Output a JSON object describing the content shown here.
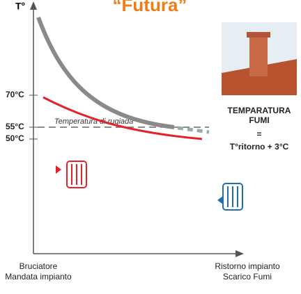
{
  "header": {
    "axis_symbol": "T°",
    "title": "“Futura”"
  },
  "axis": {
    "ticks": [
      "70°C",
      "55°C",
      "50°C"
    ]
  },
  "curve_label": "Temperatura di rugiada",
  "side": {
    "title_lines": [
      "TEMPARATURA",
      "FUMI"
    ],
    "equals": "=",
    "formula": "T°ritorno + 3°C"
  },
  "bottom": {
    "left": [
      "Bruciatore",
      "Mandata impianto"
    ],
    "right": [
      "Ristorno impianto",
      "Scarico Fumi"
    ]
  }
}
